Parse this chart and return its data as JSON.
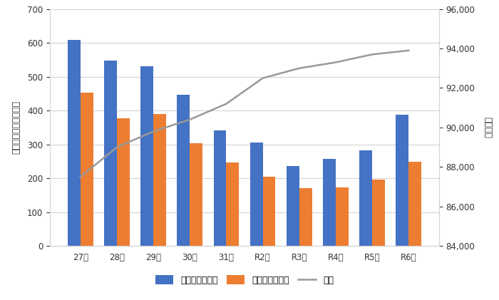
{
  "categories": [
    "27年",
    "28年",
    "29年",
    "30年",
    "31年",
    "R2年",
    "R3年",
    "R4年",
    "R5年",
    "R6年"
  ],
  "criminal_offenses": [
    608,
    547,
    530,
    447,
    341,
    305,
    237,
    257,
    282,
    388
  ],
  "theft_offenses": [
    452,
    377,
    390,
    303,
    247,
    205,
    170,
    172,
    196,
    248
  ],
  "population": [
    87500,
    89000,
    89800,
    90400,
    91200,
    92500,
    93000,
    93300,
    93700,
    93900
  ],
  "bar_color_criminal": "#4472C4",
  "bar_color_theft": "#ED7D31",
  "line_color": "#999999",
  "ylabel_left": "刑法犯認知件数（件）",
  "ylabel_right": "（人口）",
  "ylim_left": [
    0,
    700
  ],
  "ylim_right": [
    84000,
    96000
  ],
  "yticks_left": [
    0,
    100,
    200,
    300,
    400,
    500,
    600,
    700
  ],
  "yticks_right": [
    84000,
    86000,
    88000,
    90000,
    92000,
    94000,
    96000
  ],
  "legend_labels": [
    "刑法犯認知件数",
    "窃盗犯認知件数",
    "人口"
  ],
  "background_color": "#ffffff",
  "grid_color": "#d3d3d3",
  "tick_color": "#aaaaaa"
}
